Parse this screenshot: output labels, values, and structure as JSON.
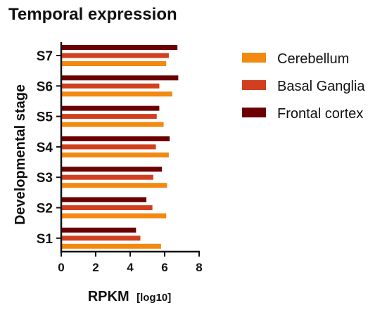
{
  "chart_data": {
    "type": "bar",
    "orientation": "horizontal",
    "title": "Temporal expression",
    "xlabel": "RPKM",
    "xlabel_suffix": "[log10]",
    "ylabel": "Developmental stage",
    "xlim": [
      0,
      8
    ],
    "xticks": [
      "0",
      "2",
      "4",
      "6",
      "8"
    ],
    "grid": false,
    "legend_position": "top-right",
    "categories": [
      "S7",
      "S6",
      "S5",
      "S4",
      "S3",
      "S2",
      "S1"
    ],
    "series": [
      {
        "name": "Frontal cortex",
        "color": "#6b0000",
        "values": [
          6.7,
          6.75,
          5.65,
          6.25,
          5.8,
          4.9,
          4.3
        ]
      },
      {
        "name": "Basal Ganglia",
        "color": "#d0401f",
        "values": [
          6.2,
          5.65,
          5.5,
          5.45,
          5.3,
          5.25,
          4.55
        ]
      },
      {
        "name": "Cerebellum",
        "color": "#f28a12",
        "values": [
          6.05,
          6.4,
          5.9,
          6.2,
          6.1,
          6.05,
          5.75
        ]
      }
    ],
    "legend_order": [
      "Cerebellum",
      "Basal Ganglia",
      "Frontal cortex"
    ]
  }
}
